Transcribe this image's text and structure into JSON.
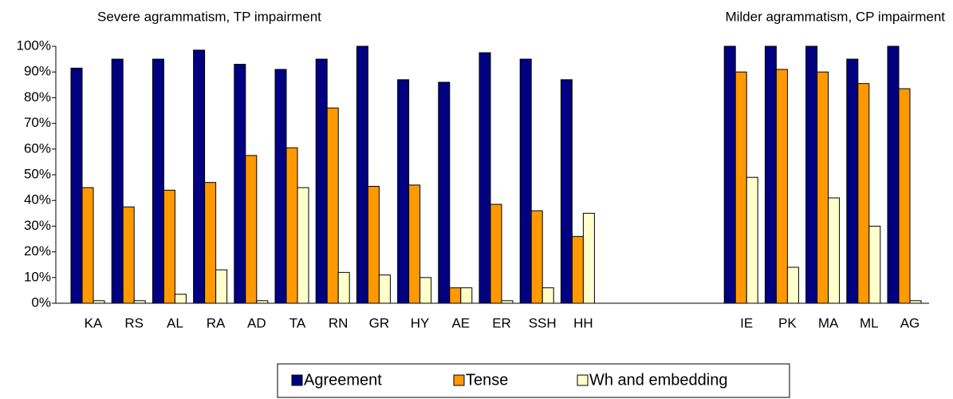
{
  "chart_data": {
    "type": "bar",
    "annotations": [
      "Severe agrammatism, TP impairment",
      "Milder agrammatism, CP impairment"
    ],
    "categories": [
      "KA",
      "RS",
      "AL",
      "RA",
      "AD",
      "TA",
      "RN",
      "GR",
      "HY",
      "AE",
      "ER",
      "SSH",
      "HH",
      null,
      null,
      null,
      "IE",
      "PK",
      "MA",
      "ML",
      "AG"
    ],
    "series": [
      {
        "name": "Agreement",
        "color": "#000080",
        "values": [
          91.5,
          95,
          95,
          98.5,
          93,
          91,
          95,
          100,
          87,
          86,
          97.5,
          95,
          87,
          null,
          null,
          null,
          100,
          100,
          100,
          95,
          100
        ]
      },
      {
        "name": "Tense",
        "color": "#ff9900",
        "values": [
          45,
          37.5,
          44,
          47,
          57.5,
          60.5,
          76,
          45.5,
          46,
          6,
          38.5,
          36,
          26,
          null,
          null,
          null,
          90,
          91,
          90,
          85.5,
          83.5
        ]
      },
      {
        "name": "Wh and embedding",
        "color": "#ffffcc",
        "values": [
          1,
          1,
          3.5,
          13,
          1,
          45,
          12,
          11,
          10,
          6,
          1,
          6,
          35,
          null,
          null,
          null,
          49,
          14,
          41,
          30,
          1
        ]
      }
    ],
    "ylim": [
      0,
      100
    ],
    "yticks": [
      {
        "value": 0,
        "label": "0%"
      },
      {
        "value": 10,
        "label": "10%"
      },
      {
        "value": 20,
        "label": "20%"
      },
      {
        "value": 30,
        "label": "30%"
      },
      {
        "value": 40,
        "label": "40%"
      },
      {
        "value": 50,
        "label": "50%"
      },
      {
        "value": 60,
        "label": "60%"
      },
      {
        "value": 70,
        "label": "70%"
      },
      {
        "value": 80,
        "label": "80%"
      },
      {
        "value": 90,
        "label": "90%"
      },
      {
        "value": 100,
        "label": "100%"
      }
    ],
    "legend": "bottom"
  }
}
